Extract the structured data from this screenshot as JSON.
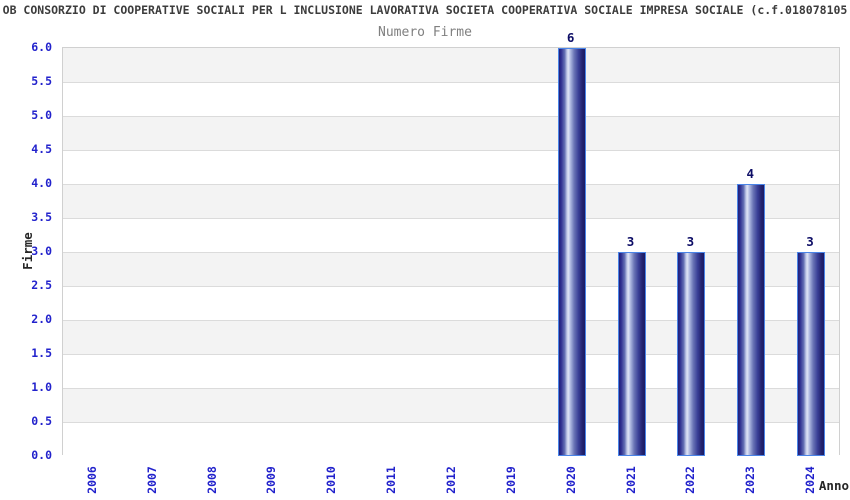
{
  "title": "OB CONSORZIO DI COOPERATIVE SOCIALI PER L INCLUSIONE LAVORATIVA SOCIETA COOPERATIVA SOCIALE IMPRESA SOCIALE (c.f.018078105",
  "subtitle": "Numero Firme",
  "chart_data": {
    "type": "bar",
    "title": "Numero Firme",
    "categories": [
      "2006",
      "2007",
      "2008",
      "2009",
      "2010",
      "2011",
      "2012",
      "2019",
      "2020",
      "2021",
      "2022",
      "2023",
      "2024"
    ],
    "values": [
      0,
      0,
      0,
      0,
      0,
      0,
      0,
      0,
      6,
      3,
      3,
      4,
      3
    ],
    "xlabel": "Anno",
    "ylabel": "Firme",
    "ylim": [
      0,
      6
    ],
    "ytick_step": 0.5,
    "ytick_format_decimals": 1,
    "grid": "horizontal-bands-alternating",
    "legend": "none",
    "bar_labels_visible_for_nonzero": true
  },
  "colors": {
    "title_text": "#3c3c3c",
    "subtitle_text": "#808080",
    "tick_text": "#2222cc",
    "axis_title_text": "#262626",
    "bar_value_text": "#0d0d66",
    "bar_border": "#4a85e8",
    "bar_dark": "#1b1b66",
    "bar_highlight": "#dde3f5",
    "band_gray": "#f3f3f3",
    "band_white": "#ffffff",
    "gridline": "#dbdbdb",
    "plot_border": "#d0d0d0",
    "background": "#ffffff"
  }
}
